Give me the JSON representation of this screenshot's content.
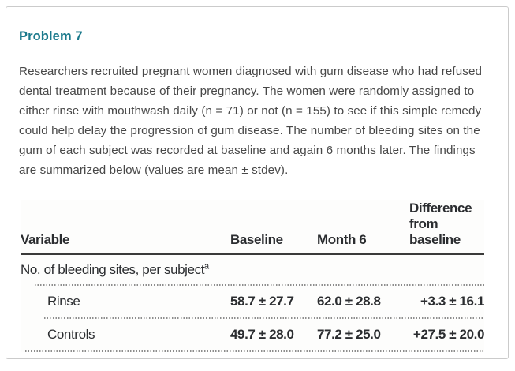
{
  "problem": {
    "title": "Problem 7",
    "statement": "Researchers recruited pregnant women diagnosed with gum disease who had refused dental treatment because of their pregnancy. The women were randomly assigned to either rinse with mouthwash daily (n = 71) or not (n = 155) to see if this simple remedy could help delay the progression of gum disease. The number of bleeding sites on the gum of each subject was recorded at baseline and again 6 months later. The findings are summarized below (values are mean ± stdev)."
  },
  "colors": {
    "accent_heading": "#1b7a8c",
    "body_text": "#484848",
    "table_text": "#2b2d30",
    "card_border": "#cbcbcb"
  },
  "table": {
    "headers": [
      "Variable",
      "Baseline",
      "Month 6",
      "Difference from baseline"
    ],
    "group_row": {
      "label": "No. of bleeding sites, per subject",
      "superscript": "a"
    },
    "rows": [
      {
        "variable": "Rinse",
        "baseline": "58.7 ± 27.7",
        "month6": "62.0 ± 28.8",
        "difference": "+3.3 ± 16.1"
      },
      {
        "variable": "Controls",
        "baseline": "49.7 ± 28.0",
        "month6": "77.2 ± 25.0",
        "difference": "+27.5 ± 20.0"
      }
    ]
  },
  "chart_data": {
    "type": "table",
    "title": "Problem 7 results table",
    "columns": [
      "Variable",
      "Baseline",
      "Month 6",
      "Difference from baseline"
    ],
    "group": "No. of bleeding sites, per subject (a)",
    "rows": [
      [
        "Rinse",
        "58.7 ± 27.7",
        "62.0 ± 28.8",
        "+3.3 ± 16.1"
      ],
      [
        "Controls",
        "49.7 ± 28.0",
        "77.2 ± 25.0",
        "+27.5 ± 20.0"
      ]
    ]
  }
}
